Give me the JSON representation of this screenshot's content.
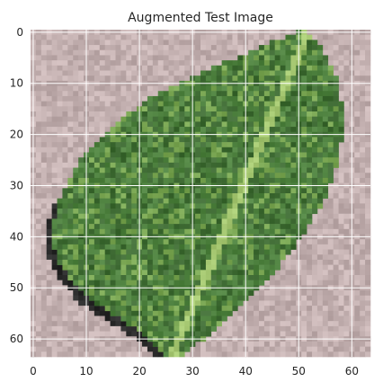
{
  "figure": {
    "title": "Augmented Test Image",
    "image_description_icon": "leaf-image",
    "background_color": "#ffffff"
  },
  "axes": {
    "x_ticks": [
      "0",
      "10",
      "20",
      "30",
      "40",
      "50",
      "60"
    ],
    "y_ticks": [
      "0",
      "10",
      "20",
      "30",
      "40",
      "50",
      "60"
    ],
    "x_tick_values": [
      0,
      10,
      20,
      30,
      40,
      50,
      60
    ],
    "y_tick_values": [
      0,
      10,
      20,
      30,
      40,
      50,
      60
    ],
    "image_size": 64,
    "grid": true,
    "grid_color": "#ffffff"
  },
  "palette": {
    "background_pixels": "#c3b0b0",
    "leaf_dark": "#3f6b34",
    "leaf_mid": "#4f8240",
    "leaf_light": "#7aa653",
    "vein": "#a6c872",
    "shadow": "#1a1a1a"
  }
}
